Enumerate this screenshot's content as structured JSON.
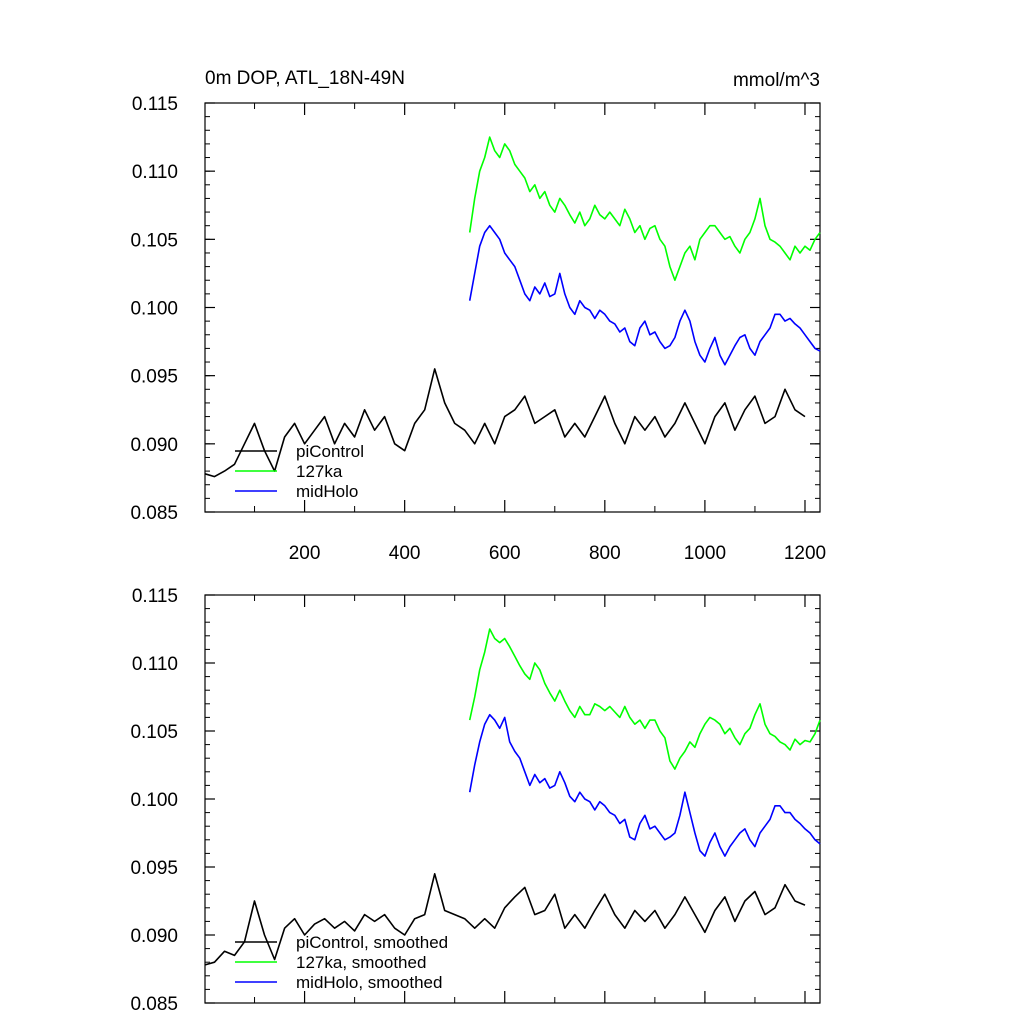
{
  "figure": {
    "title_left": "0m DOP, ATL_18N-49N",
    "title_right": "mmol/m^3"
  },
  "colors": {
    "piControl": "#000000",
    "127ka": "#00ff00",
    "midHolo": "#0000ff",
    "axis": "#000000",
    "background": "#ffffff"
  },
  "chart_data": [
    {
      "type": "line",
      "title": "0m DOP, ATL_18N-49N",
      "units": "mmol/m^3",
      "xlabel": "",
      "ylabel": "",
      "xlim": [
        1,
        1230
      ],
      "ylim": [
        0.085,
        0.115
      ],
      "yticks": [
        0.085,
        0.09,
        0.095,
        0.1,
        0.105,
        0.11,
        0.115
      ],
      "ytick_labels": [
        "0.085",
        "0.090",
        "0.095",
        "0.100",
        "0.105",
        "0.110",
        "0.115"
      ],
      "xticks": [
        200,
        400,
        600,
        800,
        1000,
        1200
      ],
      "xtick_labels": [
        "200",
        "400",
        "600",
        "800",
        "1000",
        "1200"
      ],
      "grid": false,
      "legend_position": "bottom-left",
      "series": [
        {
          "name": "piControl",
          "color": "#000000",
          "x": [
            1,
            20,
            40,
            60,
            80,
            100,
            120,
            140,
            160,
            180,
            200,
            220,
            240,
            260,
            280,
            300,
            320,
            340,
            360,
            380,
            400,
            420,
            440,
            460,
            480,
            500,
            520,
            540,
            560,
            580,
            600,
            620,
            640,
            660,
            680,
            700,
            720,
            740,
            760,
            780,
            800,
            820,
            840,
            860,
            880,
            900,
            920,
            940,
            960,
            980,
            1000,
            1020,
            1040,
            1060,
            1080,
            1100,
            1120,
            1140,
            1160,
            1180,
            1200
          ],
          "y": [
            0.0878,
            0.0876,
            0.088,
            0.0885,
            0.09,
            0.0915,
            0.0895,
            0.088,
            0.0905,
            0.0915,
            0.09,
            0.091,
            0.092,
            0.09,
            0.0915,
            0.0905,
            0.0925,
            0.091,
            0.092,
            0.09,
            0.0895,
            0.0915,
            0.0925,
            0.0955,
            0.093,
            0.0915,
            0.091,
            0.09,
            0.0915,
            0.09,
            0.092,
            0.0925,
            0.0935,
            0.0915,
            0.092,
            0.0925,
            0.0905,
            0.0915,
            0.0905,
            0.092,
            0.0935,
            0.0915,
            0.09,
            0.092,
            0.091,
            0.092,
            0.0905,
            0.0915,
            0.093,
            0.0915,
            0.09,
            0.092,
            0.093,
            0.091,
            0.0925,
            0.0935,
            0.0915,
            0.092,
            0.094,
            0.0925,
            0.092
          ]
        },
        {
          "name": "127ka",
          "color": "#00ff00",
          "x": [
            530,
            540,
            550,
            560,
            570,
            580,
            590,
            600,
            610,
            620,
            630,
            640,
            650,
            660,
            670,
            680,
            690,
            700,
            710,
            720,
            730,
            740,
            750,
            760,
            770,
            780,
            790,
            800,
            810,
            820,
            830,
            840,
            850,
            860,
            870,
            880,
            890,
            900,
            910,
            920,
            930,
            940,
            950,
            960,
            970,
            980,
            990,
            1000,
            1010,
            1020,
            1030,
            1040,
            1050,
            1060,
            1070,
            1080,
            1090,
            1100,
            1110,
            1120,
            1130,
            1140,
            1150,
            1160,
            1170,
            1180,
            1190,
            1200,
            1210,
            1220,
            1230
          ],
          "y": [
            0.1055,
            0.108,
            0.11,
            0.111,
            0.1125,
            0.1115,
            0.111,
            0.112,
            0.1115,
            0.1105,
            0.11,
            0.1095,
            0.1085,
            0.109,
            0.108,
            0.1085,
            0.1075,
            0.107,
            0.108,
            0.1075,
            0.1068,
            0.1062,
            0.107,
            0.106,
            0.1065,
            0.1075,
            0.1068,
            0.1065,
            0.107,
            0.1065,
            0.106,
            0.1072,
            0.1065,
            0.1055,
            0.106,
            0.105,
            0.1058,
            0.106,
            0.105,
            0.1045,
            0.103,
            0.102,
            0.103,
            0.104,
            0.1045,
            0.1035,
            0.105,
            0.1055,
            0.106,
            0.106,
            0.1055,
            0.105,
            0.1052,
            0.1045,
            0.104,
            0.105,
            0.1055,
            0.1065,
            0.108,
            0.106,
            0.105,
            0.1048,
            0.1045,
            0.104,
            0.1035,
            0.1045,
            0.104,
            0.1045,
            0.1042,
            0.105,
            0.1055
          ]
        },
        {
          "name": "midHolo",
          "color": "#0000ff",
          "x": [
            530,
            540,
            550,
            560,
            570,
            580,
            590,
            600,
            610,
            620,
            630,
            640,
            650,
            660,
            670,
            680,
            690,
            700,
            710,
            720,
            730,
            740,
            750,
            760,
            770,
            780,
            790,
            800,
            810,
            820,
            830,
            840,
            850,
            860,
            870,
            880,
            890,
            900,
            910,
            920,
            930,
            940,
            950,
            960,
            970,
            980,
            990,
            1000,
            1010,
            1020,
            1030,
            1040,
            1050,
            1060,
            1070,
            1080,
            1090,
            1100,
            1110,
            1120,
            1130,
            1140,
            1150,
            1160,
            1170,
            1180,
            1190,
            1200,
            1210,
            1220,
            1230
          ],
          "y": [
            0.1005,
            0.1025,
            0.1045,
            0.1055,
            0.106,
            0.1055,
            0.105,
            0.104,
            0.1035,
            0.103,
            0.102,
            0.101,
            0.1005,
            0.1015,
            0.101,
            0.1018,
            0.1008,
            0.101,
            0.1025,
            0.101,
            0.1,
            0.0995,
            0.1005,
            0.1,
            0.0998,
            0.0992,
            0.0998,
            0.0995,
            0.099,
            0.0988,
            0.0982,
            0.0985,
            0.0975,
            0.0972,
            0.0985,
            0.099,
            0.098,
            0.0982,
            0.0975,
            0.097,
            0.0972,
            0.0978,
            0.099,
            0.0998,
            0.099,
            0.0975,
            0.0965,
            0.096,
            0.097,
            0.0978,
            0.0965,
            0.0958,
            0.0965,
            0.0972,
            0.0978,
            0.098,
            0.097,
            0.0965,
            0.0975,
            0.098,
            0.0985,
            0.0995,
            0.0995,
            0.099,
            0.0992,
            0.0988,
            0.0985,
            0.098,
            0.0975,
            0.097,
            0.0968
          ]
        }
      ],
      "legend_labels": [
        "piControl",
        "127ka",
        "midHolo"
      ]
    },
    {
      "type": "line",
      "title": "",
      "xlabel": "",
      "ylabel": "",
      "xlim": [
        1,
        1230
      ],
      "ylim": [
        0.085,
        0.115
      ],
      "yticks": [
        0.085,
        0.09,
        0.095,
        0.1,
        0.105,
        0.11,
        0.115
      ],
      "ytick_labels": [
        "0.085",
        "0.090",
        "0.095",
        "0.100",
        "0.105",
        "0.110",
        "0.115"
      ],
      "xticks": [
        200,
        400,
        600,
        800,
        1000,
        1200
      ],
      "xtick_labels": [],
      "grid": false,
      "legend_position": "bottom-left",
      "series": [
        {
          "name": "piControl, smoothed",
          "color": "#000000",
          "x": [
            1,
            20,
            40,
            60,
            80,
            100,
            120,
            140,
            160,
            180,
            200,
            220,
            240,
            260,
            280,
            300,
            320,
            340,
            360,
            380,
            400,
            420,
            440,
            460,
            480,
            500,
            520,
            540,
            560,
            580,
            600,
            620,
            640,
            660,
            680,
            700,
            720,
            740,
            760,
            780,
            800,
            820,
            840,
            860,
            880,
            900,
            920,
            940,
            960,
            980,
            1000,
            1020,
            1040,
            1060,
            1080,
            1100,
            1120,
            1140,
            1160,
            1180,
            1200
          ],
          "y": [
            0.0878,
            0.088,
            0.0888,
            0.0885,
            0.0895,
            0.0925,
            0.09,
            0.0882,
            0.0905,
            0.0912,
            0.09,
            0.0908,
            0.0912,
            0.0905,
            0.091,
            0.0903,
            0.0915,
            0.091,
            0.0915,
            0.0905,
            0.09,
            0.0912,
            0.0915,
            0.0945,
            0.0918,
            0.0915,
            0.0912,
            0.0905,
            0.0912,
            0.0905,
            0.092,
            0.0928,
            0.0935,
            0.0915,
            0.0918,
            0.093,
            0.0905,
            0.0915,
            0.0905,
            0.0918,
            0.093,
            0.0915,
            0.0905,
            0.0918,
            0.091,
            0.0918,
            0.0905,
            0.0915,
            0.0928,
            0.0915,
            0.0902,
            0.0918,
            0.0928,
            0.091,
            0.0925,
            0.0932,
            0.0915,
            0.092,
            0.0937,
            0.0925,
            0.0922
          ]
        },
        {
          "name": "127ka, smoothed",
          "color": "#00ff00",
          "x": [
            530,
            540,
            550,
            560,
            570,
            580,
            590,
            600,
            610,
            620,
            630,
            640,
            650,
            660,
            670,
            680,
            690,
            700,
            710,
            720,
            730,
            740,
            750,
            760,
            770,
            780,
            790,
            800,
            810,
            820,
            830,
            840,
            850,
            860,
            870,
            880,
            890,
            900,
            910,
            920,
            930,
            940,
            950,
            960,
            970,
            980,
            990,
            1000,
            1010,
            1020,
            1030,
            1040,
            1050,
            1060,
            1070,
            1080,
            1090,
            1100,
            1110,
            1120,
            1130,
            1140,
            1150,
            1160,
            1170,
            1180,
            1190,
            1200,
            1210,
            1220,
            1230
          ],
          "y": [
            0.1058,
            0.1075,
            0.1095,
            0.1108,
            0.1125,
            0.1118,
            0.1115,
            0.1118,
            0.1112,
            0.1105,
            0.1098,
            0.1092,
            0.1088,
            0.11,
            0.1095,
            0.1085,
            0.1078,
            0.1072,
            0.108,
            0.1072,
            0.1065,
            0.106,
            0.1068,
            0.1062,
            0.1062,
            0.107,
            0.1068,
            0.1065,
            0.1068,
            0.1064,
            0.106,
            0.1068,
            0.106,
            0.1055,
            0.1058,
            0.1052,
            0.1058,
            0.1058,
            0.105,
            0.1045,
            0.1028,
            0.1022,
            0.103,
            0.1035,
            0.1042,
            0.1038,
            0.1048,
            0.1055,
            0.106,
            0.1058,
            0.1055,
            0.1048,
            0.1052,
            0.1045,
            0.104,
            0.1048,
            0.1052,
            0.1062,
            0.107,
            0.1055,
            0.1048,
            0.1046,
            0.1042,
            0.104,
            0.1036,
            0.1044,
            0.104,
            0.1043,
            0.1042,
            0.1048,
            0.1058
          ]
        },
        {
          "name": "midHolo, smoothed",
          "color": "#0000ff",
          "x": [
            530,
            540,
            550,
            560,
            570,
            580,
            590,
            600,
            610,
            620,
            630,
            640,
            650,
            660,
            670,
            680,
            690,
            700,
            710,
            720,
            730,
            740,
            750,
            760,
            770,
            780,
            790,
            800,
            810,
            820,
            830,
            840,
            850,
            860,
            870,
            880,
            890,
            900,
            910,
            920,
            930,
            940,
            950,
            960,
            970,
            980,
            990,
            1000,
            1010,
            1020,
            1030,
            1040,
            1050,
            1060,
            1070,
            1080,
            1090,
            1100,
            1110,
            1120,
            1130,
            1140,
            1150,
            1160,
            1170,
            1180,
            1190,
            1200,
            1210,
            1220,
            1230
          ],
          "y": [
            0.1005,
            0.1025,
            0.1042,
            0.1055,
            0.1062,
            0.1058,
            0.1052,
            0.106,
            0.1042,
            0.1035,
            0.103,
            0.102,
            0.101,
            0.1018,
            0.1012,
            0.1015,
            0.1008,
            0.101,
            0.102,
            0.1012,
            0.1002,
            0.0998,
            0.1005,
            0.1,
            0.0998,
            0.0992,
            0.0998,
            0.0995,
            0.099,
            0.0988,
            0.0982,
            0.0985,
            0.0972,
            0.097,
            0.0982,
            0.0988,
            0.0978,
            0.098,
            0.0975,
            0.097,
            0.0972,
            0.0975,
            0.0988,
            0.1005,
            0.099,
            0.0975,
            0.0962,
            0.0958,
            0.0968,
            0.0975,
            0.0965,
            0.0958,
            0.0965,
            0.097,
            0.0975,
            0.0978,
            0.097,
            0.0965,
            0.0975,
            0.098,
            0.0985,
            0.0995,
            0.0995,
            0.099,
            0.099,
            0.0985,
            0.0982,
            0.0978,
            0.0975,
            0.097,
            0.0967
          ]
        }
      ],
      "legend_labels": [
        "piControl, smoothed",
        "127ka, smoothed",
        "midHolo, smoothed"
      ]
    }
  ]
}
